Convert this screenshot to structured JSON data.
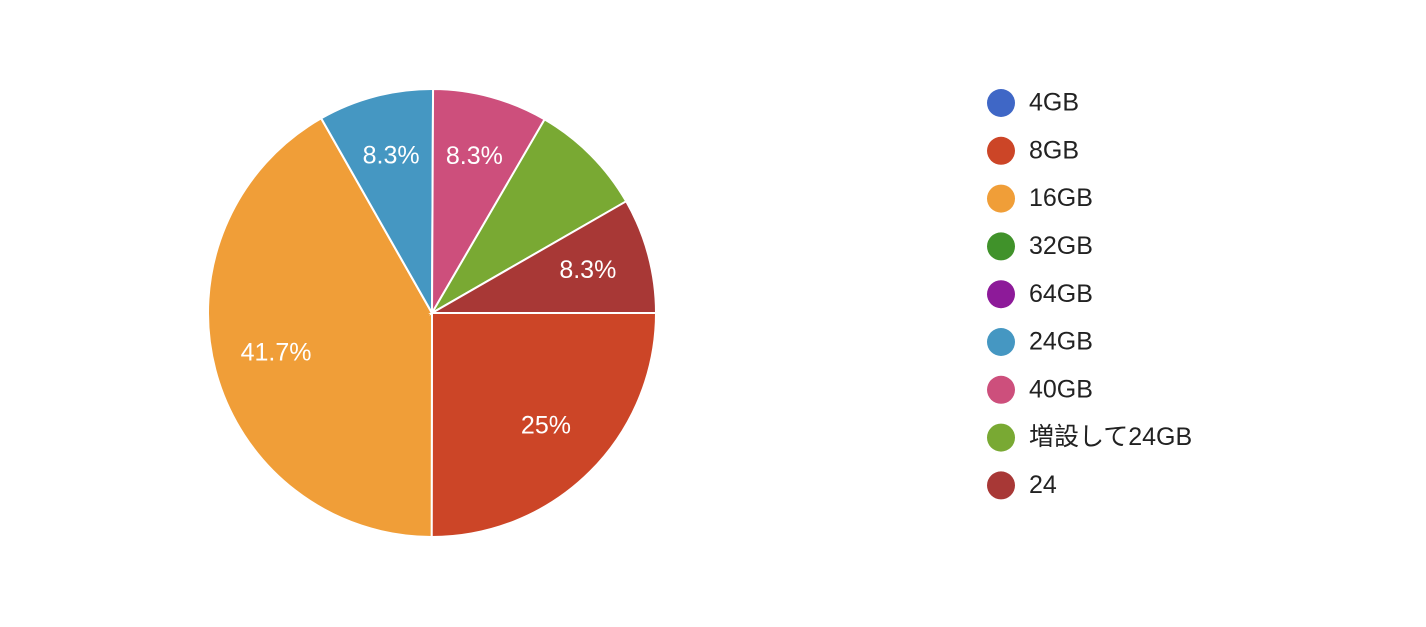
{
  "chart_data": {
    "type": "pie",
    "categories": [
      "4GB",
      "8GB",
      "16GB",
      "32GB",
      "64GB",
      "24GB",
      "40GB",
      "増設して24GB",
      "24"
    ],
    "values": [
      0,
      25,
      41.7,
      0,
      0,
      8.3,
      8.3,
      8.3,
      8.3
    ],
    "value_labels": [
      null,
      "25%",
      "41.7%",
      null,
      null,
      "8.3%",
      "8.3%",
      null,
      "8.3%"
    ],
    "colors": [
      "#3f67c6",
      "#cc4527",
      "#f09e38",
      "#40922a",
      "#8d1a99",
      "#4597c2",
      "#cd4f7c",
      "#79a933",
      "#a83836"
    ],
    "legend": "right"
  }
}
